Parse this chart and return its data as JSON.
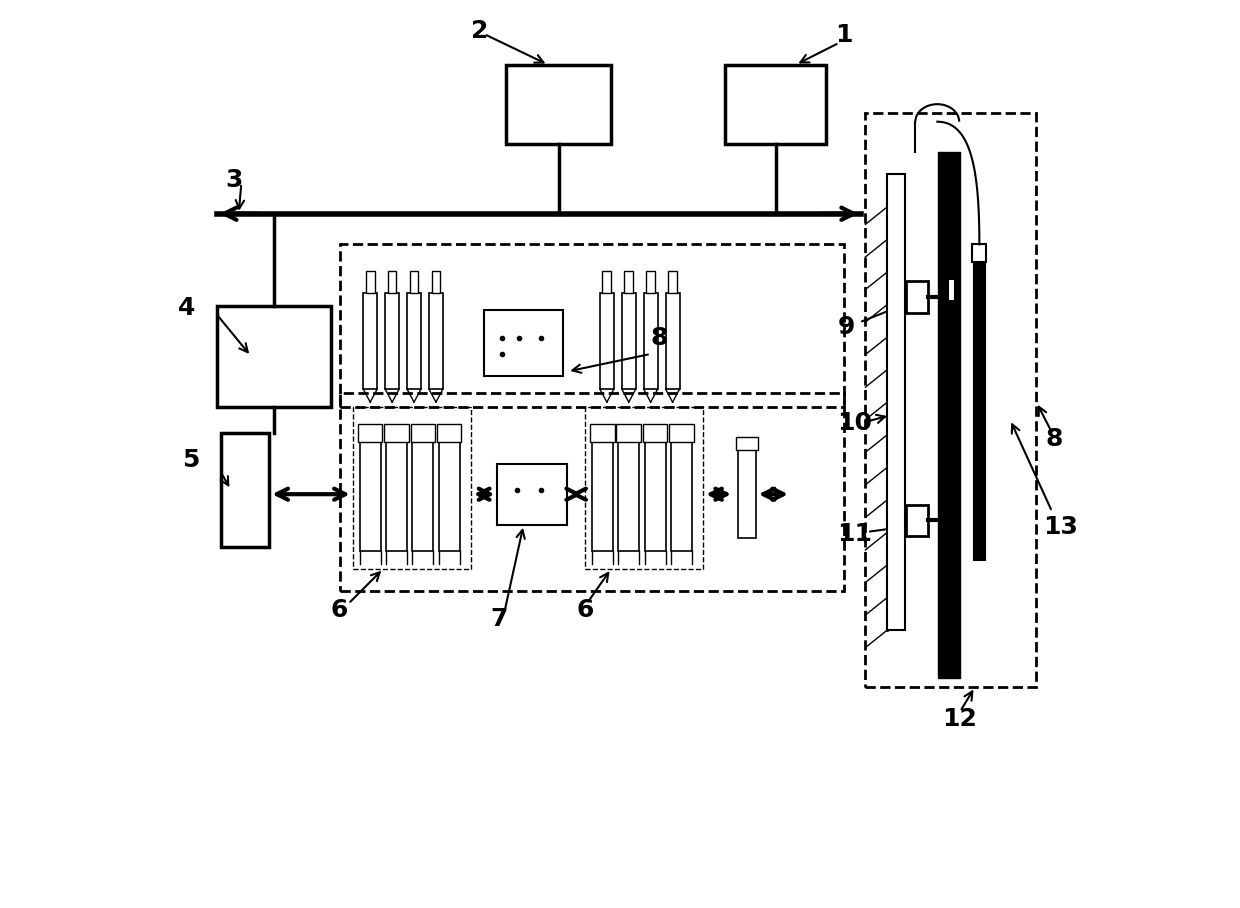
{
  "bg_color": "#ffffff",
  "line_color": "#000000",
  "label_fontsize": 18,
  "label_fontweight": "bold"
}
